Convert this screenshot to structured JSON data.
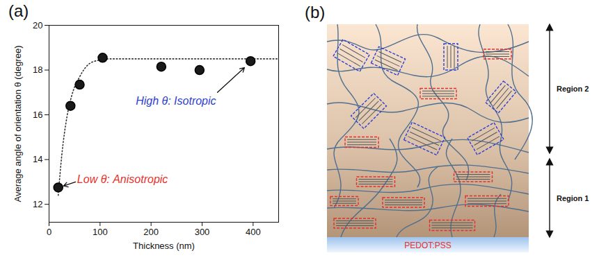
{
  "chart_data": {
    "type": "scatter",
    "panel_label": "(a)",
    "x_label": "Thickness (nm)",
    "y_label": "Average angle of orientation θ (degree)",
    "x": [
      18,
      42,
      60,
      105,
      220,
      295,
      395
    ],
    "values": [
      12.75,
      16.4,
      17.35,
      18.55,
      18.15,
      18.0,
      18.4
    ],
    "color": "#1a1a1a",
    "marker": "circle",
    "fit": {
      "x": [
        18,
        25,
        35,
        45,
        60,
        80,
        100,
        120,
        450
      ],
      "values": [
        12.4,
        14.2,
        15.9,
        16.9,
        17.7,
        18.3,
        18.45,
        18.5,
        18.5
      ],
      "line_style": "dotted",
      "color": "#333333"
    },
    "xlim": [
      0,
      450
    ],
    "xticks": [
      0,
      100,
      200,
      300,
      400
    ],
    "ylim": [
      11.2,
      20
    ],
    "yticks": [
      12,
      14,
      16,
      18,
      20
    ],
    "annotations": [
      {
        "text": "Low θ: Anisotropic",
        "x": 55,
        "y": 13.1,
        "arrow_from": [
          52,
          13.0
        ],
        "arrow_to": [
          26,
          12.8
        ],
        "color": "#e8302a"
      },
      {
        "text": "High θ: Isotropic",
        "x": 170,
        "y": 16.6,
        "arrow_from": [
          330,
          17.0
        ],
        "arrow_to": [
          385,
          18.15
        ],
        "color": "#2f3ed0"
      }
    ]
  },
  "diagram": {
    "panel_label": "(b)",
    "substrate": "PEDOT:PSS",
    "substrate_color": "#e8302a",
    "regions": [
      {
        "label": "Region 2"
      },
      {
        "label": "Region 1"
      }
    ],
    "aligned_color": "#e03030",
    "tilted_color": "#3040d0",
    "chain_color": "#4f6f8f"
  }
}
